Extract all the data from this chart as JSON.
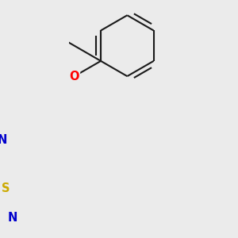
{
  "bg_color": "#ebebeb",
  "bond_color": "#1a1a1a",
  "bond_width": 1.5,
  "atom_colors": {
    "O": "#ff0000",
    "N": "#0000cc",
    "S": "#ccaa00",
    "H": "#007070",
    "C": "#1a1a1a"
  },
  "font_size": 10.5,
  "font_size_small": 9.5
}
